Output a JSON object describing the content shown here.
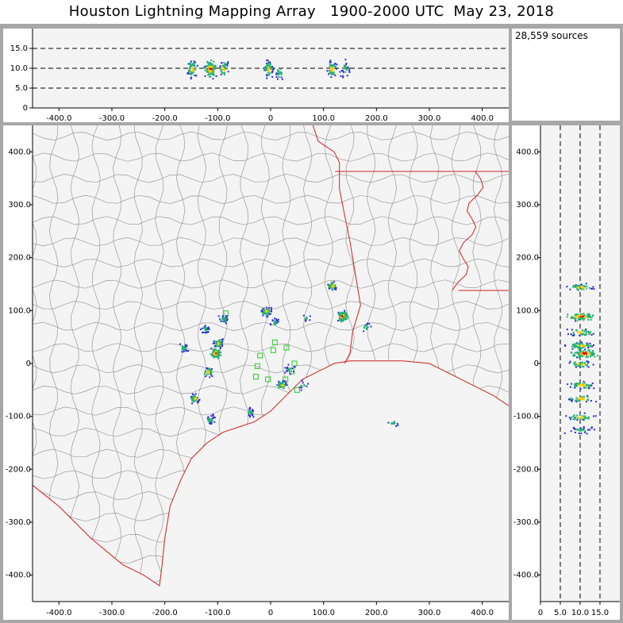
{
  "title": "Houston Lightning Mapping Array   1900-2000 UTC  May 23, 2018",
  "source_count": "28,559 sources",
  "colors": {
    "plot_bg": "#f4f4f4",
    "county_lines": "#9a9a9a",
    "state_lines": "#d02020",
    "station_marker": "#22cc22",
    "density_low": "#2a2ad8",
    "density_mid": "#20b070",
    "density_high": "#ffcc00",
    "density_peak": "#cc0000"
  },
  "chart_data": [
    {
      "type": "scatter",
      "panel": "plan-view",
      "title": "",
      "xlabel": "",
      "ylabel": "",
      "xlim": [
        -450,
        450
      ],
      "ylim": [
        -450,
        450
      ],
      "xticks": [
        "-400.0",
        "-300.0",
        "-200.0",
        "-100.0",
        "0",
        "100.0",
        "200.0",
        "300.0",
        "400.0"
      ],
      "yticks": [
        "-400.0",
        "-300.0",
        "-200.0",
        "-100.0",
        "0",
        "100.0",
        "200.0",
        "300.0",
        "400.0"
      ],
      "grid": false,
      "clusters": [
        {
          "x": 135,
          "y": 90,
          "n": 60
        },
        {
          "x": 115,
          "y": 148,
          "n": 25
        },
        {
          "x": -10,
          "y": 100,
          "n": 30
        },
        {
          "x": 5,
          "y": 78,
          "n": 10
        },
        {
          "x": -100,
          "y": 40,
          "n": 30
        },
        {
          "x": -105,
          "y": 20,
          "n": 45
        },
        {
          "x": -125,
          "y": 65,
          "n": 15
        },
        {
          "x": -90,
          "y": 85,
          "n": 15
        },
        {
          "x": -165,
          "y": 30,
          "n": 15
        },
        {
          "x": -120,
          "y": -15,
          "n": 20
        },
        {
          "x": -145,
          "y": -65,
          "n": 20
        },
        {
          "x": -115,
          "y": -105,
          "n": 15
        },
        {
          "x": -40,
          "y": -90,
          "n": 15
        },
        {
          "x": 20,
          "y": -40,
          "n": 25
        },
        {
          "x": 35,
          "y": -10,
          "n": 10
        },
        {
          "x": 230,
          "y": -110,
          "n": 6
        },
        {
          "x": 180,
          "y": 70,
          "n": 8
        },
        {
          "x": 68,
          "y": 88,
          "n": 5
        },
        {
          "x": 60,
          "y": -40,
          "n": 6
        }
      ],
      "stations": [
        {
          "x": -85,
          "y": 95
        },
        {
          "x": -20,
          "y": 15
        },
        {
          "x": -25,
          "y": -5
        },
        {
          "x": -28,
          "y": -25
        },
        {
          "x": -5,
          "y": -30
        },
        {
          "x": 5,
          "y": 25
        },
        {
          "x": 8,
          "y": 40
        },
        {
          "x": 30,
          "y": 30
        },
        {
          "x": 45,
          "y": 0
        },
        {
          "x": 50,
          "y": -50
        },
        {
          "x": 28,
          "y": -30
        },
        {
          "x": 40,
          "y": -15
        }
      ]
    },
    {
      "type": "scatter",
      "panel": "east-west-altitude",
      "xlim": [
        -450,
        450
      ],
      "ylim": [
        0,
        20
      ],
      "xticks": [
        "-400.0",
        "-300.0",
        "-200.0",
        "-100.0",
        "0",
        "100.0",
        "200.0",
        "300.0",
        "400.0"
      ],
      "yticks": [
        "0",
        "5.0",
        "10.0",
        "15.0"
      ],
      "reference_lines": [
        5,
        10,
        15
      ],
      "clusters": [
        {
          "x": -150,
          "y": 10,
          "n": 30
        },
        {
          "x": -115,
          "y": 10,
          "n": 60
        },
        {
          "x": -90,
          "y": 10,
          "n": 20
        },
        {
          "x": -5,
          "y": 10,
          "n": 30
        },
        {
          "x": 15,
          "y": 9,
          "n": 12
        },
        {
          "x": 115,
          "y": 10,
          "n": 30
        },
        {
          "x": 140,
          "y": 10,
          "n": 15
        }
      ]
    },
    {
      "type": "scatter",
      "panel": "altitude-north-south",
      "xlim": [
        0,
        20
      ],
      "ylim": [
        -450,
        450
      ],
      "xticks": [
        "0",
        "5.0",
        "10.0",
        "15.0"
      ],
      "yticks": [
        "-400.0",
        "-300.0",
        "-200.0",
        "-100.0",
        "0",
        "100.0",
        "200.0",
        "300.0",
        "400.0"
      ],
      "reference_lines": [
        5,
        10,
        15
      ],
      "clusters": [
        {
          "x": 10,
          "y": 145,
          "n": 20
        },
        {
          "x": 10,
          "y": 90,
          "n": 40
        },
        {
          "x": 10,
          "y": 60,
          "n": 20
        },
        {
          "x": 10,
          "y": 35,
          "n": 30
        },
        {
          "x": 11,
          "y": 20,
          "n": 45
        },
        {
          "x": 10,
          "y": 0,
          "n": 20
        },
        {
          "x": 10,
          "y": -40,
          "n": 25
        },
        {
          "x": 10,
          "y": -65,
          "n": 20
        },
        {
          "x": 10,
          "y": -100,
          "n": 20
        },
        {
          "x": 10,
          "y": -125,
          "n": 15
        }
      ]
    }
  ]
}
